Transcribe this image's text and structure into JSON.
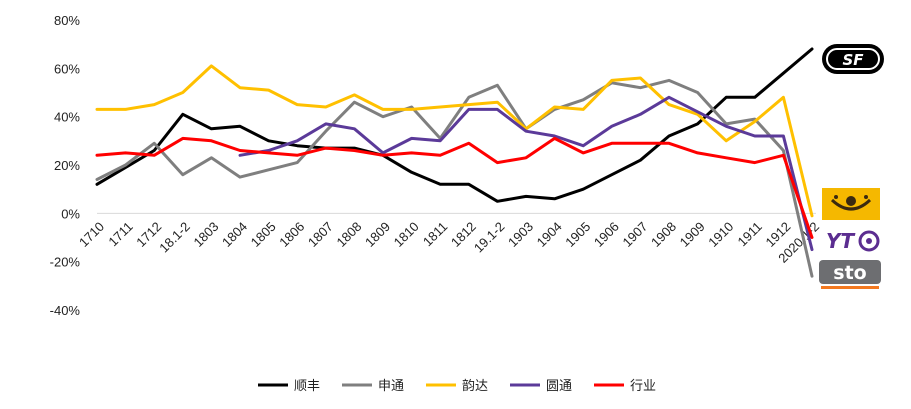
{
  "chart_data": {
    "type": "line",
    "title": "",
    "xlabel": "",
    "ylabel": "",
    "ylim": [
      -0.4,
      0.8
    ],
    "yticks": [
      -0.4,
      -0.2,
      0,
      0.2,
      0.4,
      0.6,
      0.8
    ],
    "ytick_labels": [
      "-40%",
      "-20%",
      "0%",
      "20%",
      "40%",
      "60%",
      "80%"
    ],
    "grid": false,
    "legend_position": "bottom",
    "categories": [
      "1710",
      "1711",
      "1712",
      "18.1-2",
      "1803",
      "1804",
      "1805",
      "1806",
      "1807",
      "1808",
      "1809",
      "1810",
      "1811",
      "1812",
      "19.1-2",
      "1903",
      "1904",
      "1905",
      "1906",
      "1907",
      "1908",
      "1909",
      "1910",
      "1911",
      "1912",
      "2020.1-2"
    ],
    "series": [
      {
        "name": "顺丰",
        "color": "#000000",
        "values": [
          0.12,
          0.19,
          0.26,
          0.41,
          0.35,
          0.36,
          0.3,
          0.28,
          0.27,
          0.27,
          0.24,
          0.17,
          0.12,
          0.12,
          0.05,
          0.07,
          0.06,
          0.1,
          0.16,
          0.22,
          0.32,
          0.37,
          0.48,
          0.48,
          0.58,
          0.68
        ]
      },
      {
        "name": "申通",
        "color": "#7f7f7f",
        "values": [
          0.14,
          0.2,
          0.29,
          0.16,
          0.23,
          0.15,
          0.18,
          0.21,
          0.34,
          0.46,
          0.4,
          0.44,
          0.31,
          0.48,
          0.53,
          0.35,
          0.43,
          0.47,
          0.54,
          0.52,
          0.55,
          0.5,
          0.37,
          0.39,
          0.26,
          -0.26
        ]
      },
      {
        "name": "韵达",
        "color": "#ffc000",
        "values": [
          0.43,
          0.43,
          0.45,
          0.5,
          0.61,
          0.52,
          0.51,
          0.45,
          0.44,
          0.49,
          0.43,
          0.43,
          0.44,
          0.45,
          0.46,
          0.35,
          0.44,
          0.43,
          0.55,
          0.56,
          0.45,
          0.41,
          0.3,
          0.38,
          0.48,
          -0.01
        ]
      },
      {
        "name": "圆通",
        "color": "#5b3a99",
        "values": [
          null,
          null,
          null,
          null,
          null,
          0.24,
          0.26,
          0.3,
          0.37,
          0.35,
          0.25,
          0.31,
          0.3,
          0.43,
          0.43,
          0.34,
          0.32,
          0.28,
          0.36,
          0.41,
          0.48,
          0.42,
          0.36,
          0.32,
          0.32,
          -0.15
        ]
      },
      {
        "name": "行业",
        "color": "#ff0000",
        "values": [
          0.24,
          0.25,
          0.24,
          0.31,
          0.3,
          0.26,
          0.25,
          0.24,
          0.27,
          0.26,
          0.24,
          0.25,
          0.24,
          0.29,
          0.21,
          0.23,
          0.31,
          0.25,
          0.29,
          0.29,
          0.29,
          0.25,
          0.23,
          0.21,
          0.24,
          -0.1
        ]
      }
    ]
  },
  "logos": [
    {
      "name": "sf-logo",
      "text": "SF",
      "color": "#000000"
    },
    {
      "name": "yunda-logo",
      "text": "",
      "color": "#f5b800"
    },
    {
      "name": "yto-logo",
      "text": "YT",
      "color": "#5b2d90"
    },
    {
      "name": "sto-logo",
      "text": "sto",
      "color": "#6d6e71"
    }
  ]
}
